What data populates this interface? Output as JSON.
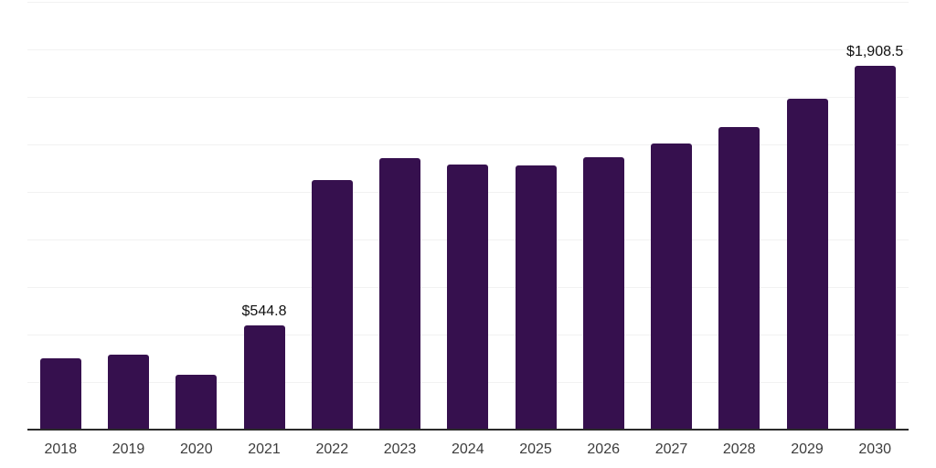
{
  "chart_data": {
    "type": "bar",
    "title": "",
    "xlabel": "",
    "ylabel": "",
    "categories": [
      "2018",
      "2019",
      "2020",
      "2021",
      "2022",
      "2023",
      "2024",
      "2025",
      "2026",
      "2027",
      "2028",
      "2029",
      "2030"
    ],
    "values": [
      372,
      391,
      285,
      544.8,
      1308,
      1422,
      1390,
      1387,
      1430,
      1498,
      1589,
      1735,
      1908.5
    ],
    "value_labels": {
      "2021": "$544.8",
      "2030": "$1,908.5"
    },
    "ylim": [
      0,
      2250
    ],
    "grid_step": 250,
    "grid": true,
    "legend": false,
    "y_tick_labels_visible": false
  },
  "colors": {
    "bar": "#36104E",
    "grid": "#f2f2f2",
    "axis": "#2a2a2a",
    "tick_label": "#3c3c3c",
    "value_label": "#101010",
    "background": "#ffffff"
  }
}
